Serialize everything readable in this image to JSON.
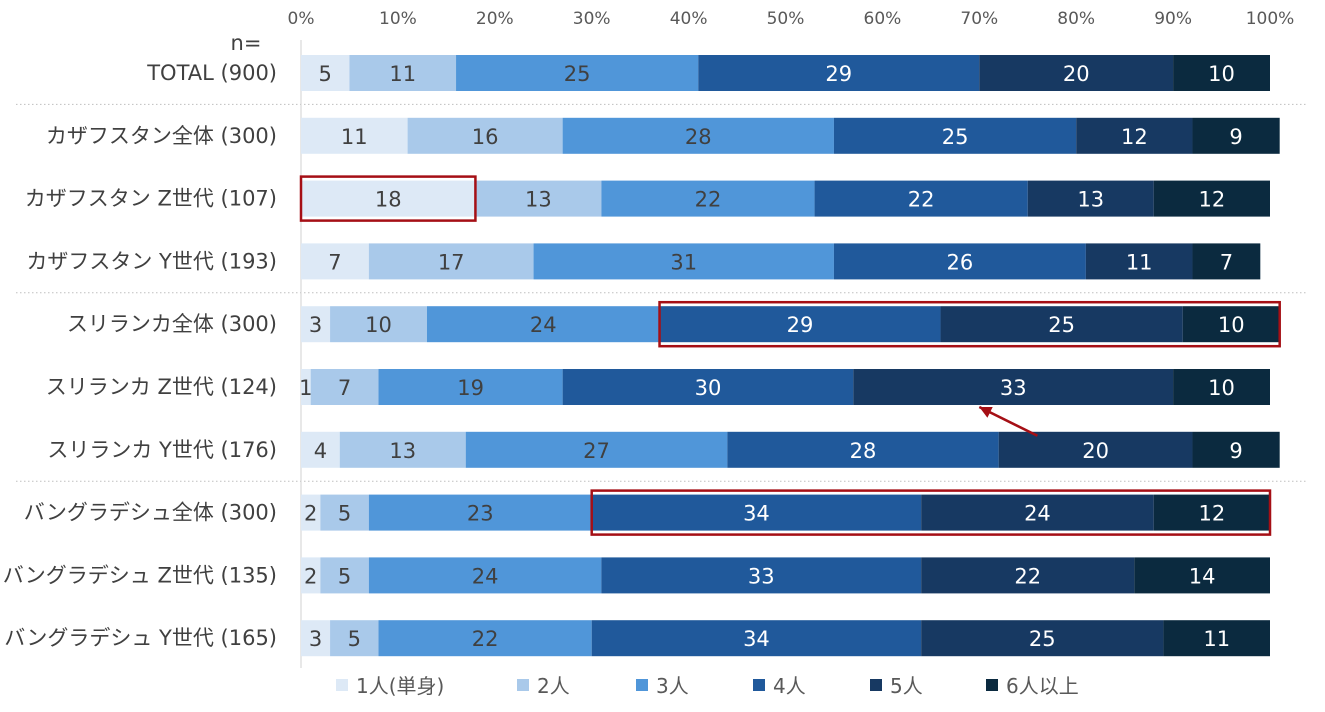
{
  "chart_data": {
    "type": "bar",
    "orientation": "horizontal",
    "stacked": true,
    "percent_scale": true,
    "n_label": "n=",
    "x_ticks": [
      "0%",
      "10%",
      "20%",
      "30%",
      "40%",
      "50%",
      "60%",
      "70%",
      "80%",
      "90%",
      "100%"
    ],
    "xlim": [
      0,
      100
    ],
    "categories": [
      "TOTAL (900)",
      "カザフスタン全体 (300)",
      "カザフスタン Z世代 (107)",
      "カザフスタン Y世代 (193)",
      "スリランカ全体 (300)",
      "スリランカ Z世代 (124)",
      "スリランカ Y世代 (176)",
      "バングラデシュ全体 (300)",
      "バングラデシュ Z世代 (135)",
      "バングラデシュ Y世代 (165)"
    ],
    "series": [
      {
        "name": "1人(単身)",
        "color": "#dde9f6",
        "label_color": "#404040",
        "values": [
          5,
          11,
          18,
          7,
          3,
          1,
          4,
          2,
          2,
          3
        ]
      },
      {
        "name": "2人",
        "color": "#a9c9ea",
        "label_color": "#404040",
        "values": [
          11,
          16,
          13,
          17,
          10,
          7,
          13,
          5,
          5,
          5
        ]
      },
      {
        "name": "3人",
        "color": "#5096d9",
        "label_color": "#404040",
        "values": [
          25,
          28,
          22,
          31,
          24,
          19,
          27,
          23,
          24,
          22
        ]
      },
      {
        "name": "4人",
        "color": "#20599b",
        "label_color": "#ffffff",
        "values": [
          29,
          25,
          22,
          26,
          29,
          30,
          28,
          34,
          33,
          34
        ]
      },
      {
        "name": "5人",
        "color": "#173962",
        "label_color": "#ffffff",
        "values": [
          20,
          12,
          13,
          11,
          25,
          33,
          20,
          24,
          22,
          25
        ]
      },
      {
        "name": "6人以上",
        "color": "#0b2a3f",
        "label_color": "#ffffff",
        "values": [
          10,
          9,
          12,
          7,
          10,
          10,
          9,
          12,
          14,
          11
        ]
      }
    ],
    "group_separators_after": [
      0,
      3,
      6
    ],
    "highlight_boxes": [
      {
        "row": 2,
        "from_series": 0,
        "to_series": 0,
        "color": "#a50f15"
      },
      {
        "row": 4,
        "from_series": 3,
        "to_series": 5,
        "color": "#a50f15"
      },
      {
        "row": 7,
        "from_series": 3,
        "to_series": 5,
        "color": "#a50f15"
      }
    ],
    "annotations": [
      {
        "type": "arrow",
        "from": {
          "row": 6,
          "value": 76
        },
        "to": {
          "row": 5,
          "value": 70
        },
        "color": "#a50f15"
      }
    ],
    "legend_position": "bottom"
  }
}
